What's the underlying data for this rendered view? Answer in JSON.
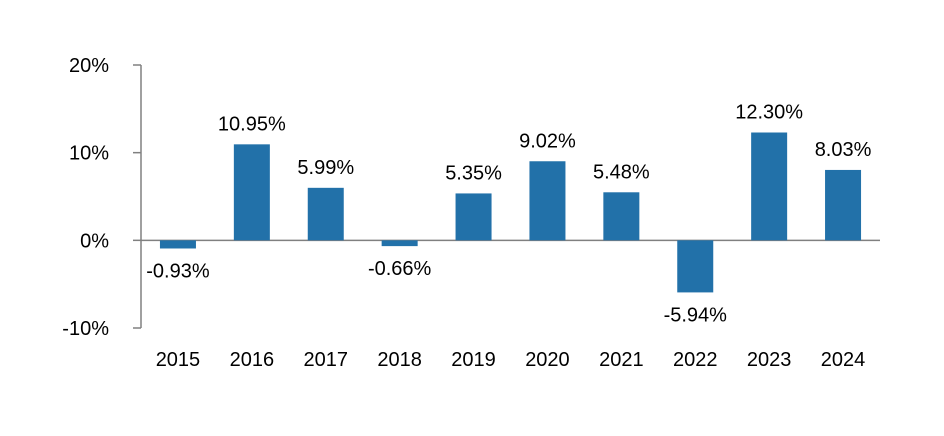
{
  "chart_data": {
    "type": "bar",
    "categories": [
      "2015",
      "2016",
      "2017",
      "2018",
      "2019",
      "2020",
      "2021",
      "2022",
      "2023",
      "2024"
    ],
    "values": [
      -0.93,
      10.95,
      5.99,
      -0.66,
      5.35,
      9.02,
      5.48,
      -5.94,
      12.3,
      8.03
    ],
    "data_labels": [
      "-0.93%",
      "10.95%",
      "5.99%",
      "-0.66%",
      "5.35%",
      "9.02%",
      "5.48%",
      "-5.94%",
      "12.30%",
      "8.03%"
    ],
    "y_ticks": [
      20,
      10,
      0,
      -10
    ],
    "y_tick_labels": [
      "20%",
      "10%",
      "0%",
      "-10%"
    ],
    "ylim": [
      -10,
      20
    ],
    "title": "",
    "xlabel": "",
    "ylabel": "",
    "grid": false,
    "legend": "none",
    "bar_color": "#2271a9",
    "axis_color": "#808080"
  }
}
